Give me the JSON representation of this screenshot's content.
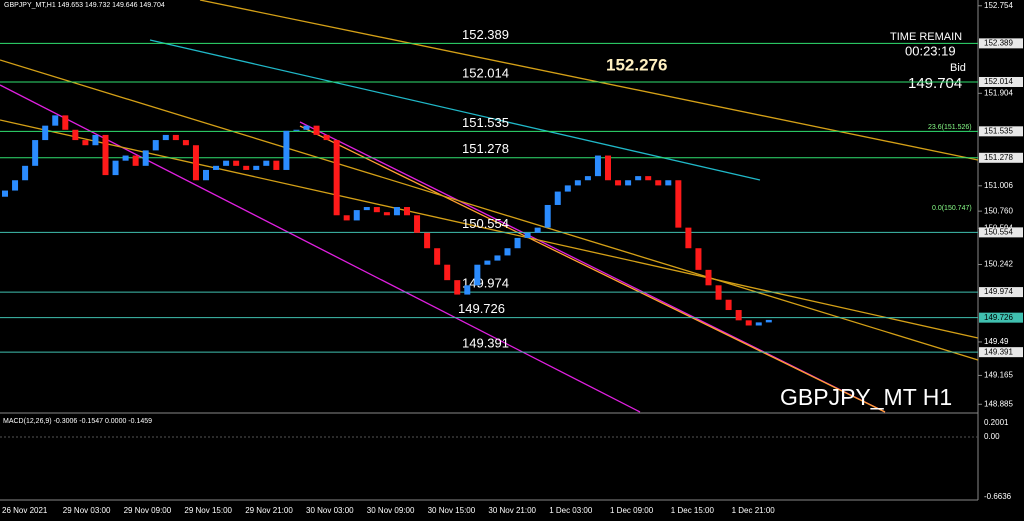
{
  "chart_data": {
    "type": "candlestick",
    "title": "GBPJPY_MT,H1  149.653 149.732 149.646 149.704",
    "watermark": "GBPJPY_MT H1",
    "highlight": "152.276",
    "timer": {
      "caption": "TIME REMAIN",
      "time": "00:23:19",
      "bid_caption": "Bid",
      "bid": "149.704"
    },
    "fib_labels": [
      "23.6(151.526)",
      "0.0(150.747)"
    ],
    "up_color": "#2b8cff",
    "down_color": "#ff1a1a",
    "ylim": [
      148.81,
      152.81
    ],
    "yticks": [
      152.754,
      151.904,
      151.006,
      {
        "value": 150.76,
        "label": "150.760"
      },
      150.594,
      150.242,
      149.49,
      149.165,
      148.885
    ],
    "levels": [
      152.389,
      152.014,
      151.535,
      151.278,
      150.554,
      149.974,
      149.726,
      149.391
    ],
    "xtick_labels": [
      "26 Nov 2021",
      "29 Nov 03:00",
      "29 Nov 09:00",
      "29 Nov 15:00",
      "29 Nov 21:00",
      "30 Nov 03:00",
      "30 Nov 09:00",
      "30 Nov 15:00",
      "30 Nov 21:00",
      "1 Dec 03:00",
      "1 Dec 09:00",
      "1 Dec 15:00",
      "1 Dec 21:00"
    ],
    "open": [
      150.9,
      150.96,
      151.06,
      151.2,
      151.45,
      151.59,
      151.69,
      151.55,
      151.45,
      151.4,
      151.5,
      151.11,
      151.25,
      151.3,
      151.2,
      151.35,
      151.45,
      151.5,
      151.45,
      151.4,
      151.06,
      151.16,
      151.2,
      151.25,
      151.2,
      151.16,
      151.2,
      151.25,
      151.16,
      151.54,
      151.55,
      151.59,
      151.5,
      151.45,
      150.72,
      150.67,
      150.77,
      150.8,
      150.75,
      150.72,
      150.8,
      150.72,
      150.55,
      150.4,
      150.24,
      150.09,
      149.95,
      150.04,
      150.24,
      150.28,
      150.33,
      150.4,
      150.5,
      150.55,
      150.6,
      150.82,
      150.95,
      151.01,
      151.06,
      151.1,
      151.3,
      151.06,
      151.01,
      151.06,
      151.1,
      151.06,
      151.01,
      151.06,
      150.6,
      150.4,
      150.19,
      150.04,
      149.9,
      149.8,
      149.7,
      149.65,
      149.68
    ],
    "close": [
      150.96,
      151.06,
      151.2,
      151.45,
      151.59,
      151.69,
      151.55,
      151.45,
      151.4,
      151.5,
      151.11,
      151.25,
      151.3,
      151.2,
      151.35,
      151.45,
      151.5,
      151.45,
      151.4,
      151.06,
      151.16,
      151.2,
      151.25,
      151.2,
      151.16,
      151.2,
      151.25,
      151.16,
      151.54,
      151.55,
      151.59,
      151.5,
      151.45,
      150.72,
      150.67,
      150.77,
      150.8,
      150.75,
      150.72,
      150.8,
      150.72,
      150.55,
      150.4,
      150.24,
      150.09,
      149.95,
      150.04,
      150.24,
      150.28,
      150.33,
      150.4,
      150.5,
      150.55,
      150.6,
      150.82,
      150.95,
      151.01,
      151.06,
      151.1,
      151.3,
      151.06,
      151.01,
      151.06,
      151.1,
      151.06,
      151.01,
      151.06,
      150.6,
      150.4,
      150.19,
      150.04,
      149.9,
      149.8,
      149.7,
      149.65,
      149.68,
      149.704
    ],
    "macd": {
      "label": "MACD(12,26,9) -0.3006 -0.1547 0.0000 -0.1459",
      "axis_labels": [
        "0.2001",
        "0.00",
        "-0.6636"
      ]
    }
  }
}
